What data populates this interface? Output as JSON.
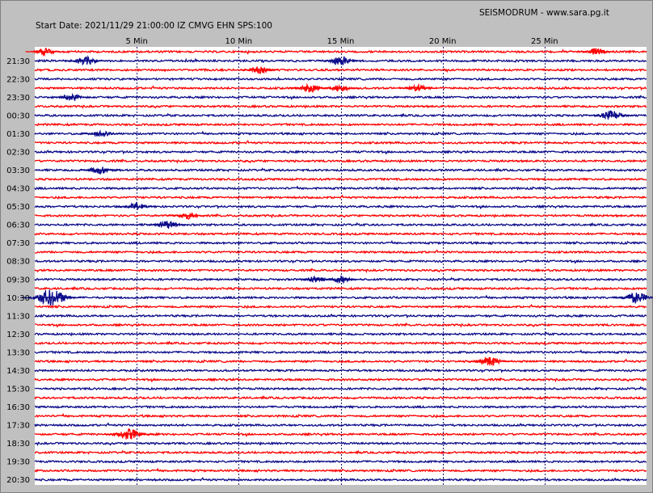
{
  "chart_data": {
    "type": "line",
    "title": "SEISMODRUM - www.sara.pg.it",
    "subtitle": "Start Date: 2021/11/29 21:00:00 IZ CMVG EHN SPS:100",
    "xlabel": "",
    "ylabel": "",
    "x_unit": "Min",
    "xlim": [
      0,
      30
    ],
    "x_ticks": [
      5,
      10,
      15,
      20,
      25
    ],
    "x_tick_labels": [
      "5 Min",
      "10 Min",
      "15 Min",
      "20 Min",
      "25 Min"
    ],
    "grid": true,
    "trace_colors": [
      "#ff0000",
      "#0a0a8a"
    ],
    "row_time_labels": [
      "21:30",
      "22:30",
      "23:30",
      "00:30",
      "01:30",
      "02:30",
      "03:30",
      "04:30",
      "05:30",
      "06:30",
      "07:30",
      "08:30",
      "09:30",
      "10:30",
      "11:30",
      "12:30",
      "13:30",
      "14:30",
      "15:30",
      "16:30",
      "17:30",
      "18:30",
      "19:30",
      "20:30"
    ],
    "trace_count": 48,
    "events": [
      {
        "trace": 0,
        "minute": 0.5,
        "amp": 0.5
      },
      {
        "trace": 0,
        "minute": 27.5,
        "amp": 0.5
      },
      {
        "trace": 1,
        "minute": 2.5,
        "amp": 0.6
      },
      {
        "trace": 1,
        "minute": 15.0,
        "amp": 0.7
      },
      {
        "trace": 2,
        "minute": 11.0,
        "amp": 0.5
      },
      {
        "trace": 4,
        "minute": 13.5,
        "amp": 0.6
      },
      {
        "trace": 4,
        "minute": 15.0,
        "amp": 0.5
      },
      {
        "trace": 4,
        "minute": 18.8,
        "amp": 0.5
      },
      {
        "trace": 5,
        "minute": 1.8,
        "amp": 0.5
      },
      {
        "trace": 7,
        "minute": 28.3,
        "amp": 0.7
      },
      {
        "trace": 9,
        "minute": 3.3,
        "amp": 0.5
      },
      {
        "trace": 13,
        "minute": 3.2,
        "amp": 0.6
      },
      {
        "trace": 17,
        "minute": 5.0,
        "amp": 0.5
      },
      {
        "trace": 18,
        "minute": 7.5,
        "amp": 0.5
      },
      {
        "trace": 19,
        "minute": 6.5,
        "amp": 0.6
      },
      {
        "trace": 25,
        "minute": 13.8,
        "amp": 0.5
      },
      {
        "trace": 25,
        "minute": 15.0,
        "amp": 0.5
      },
      {
        "trace": 27,
        "minute": 0.8,
        "amp": 1.2
      },
      {
        "trace": 27,
        "minute": 29.5,
        "amp": 0.8
      },
      {
        "trace": 34,
        "minute": 22.3,
        "amp": 0.7
      },
      {
        "trace": 42,
        "minute": 4.6,
        "amp": 0.8
      }
    ]
  }
}
